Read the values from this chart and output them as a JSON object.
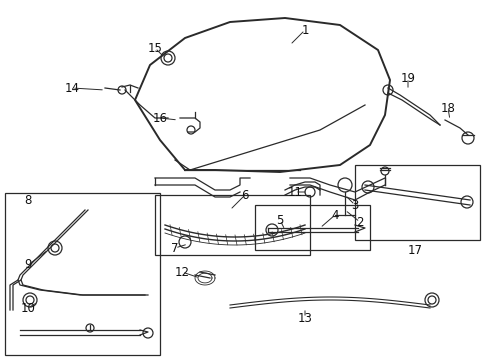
{
  "bg_color": "#ffffff",
  "line_color": "#2a2a2a",
  "label_color": "#111111",
  "lw": 0.9,
  "lw_thick": 1.4,
  "fontsize": 8.5
}
